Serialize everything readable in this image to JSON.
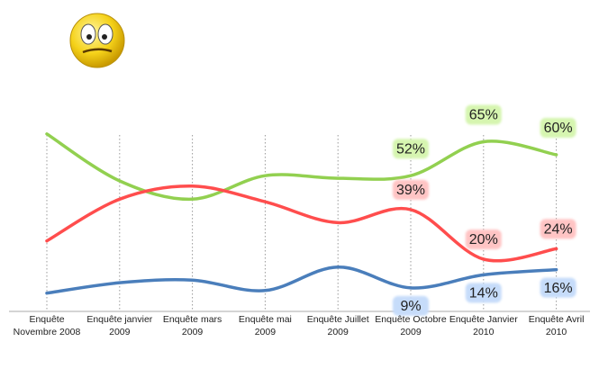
{
  "chart_data": {
    "type": "line",
    "categories": [
      "Enquête Novembre 2008",
      "Enquête janvier 2009",
      "Enquête mars 2009",
      "Enquête mai 2009",
      "Enquête Juillet 2009",
      "Enquête Octobre 2009",
      "Enquête Janvier 2010",
      "Enquête Avril 2010"
    ],
    "series": [
      {
        "name": null,
        "color": "#92d050",
        "label_bg": "#d6f5b0",
        "values": [
          68,
          50,
          43,
          52,
          51,
          52,
          65,
          60
        ],
        "value_labels": [
          null,
          null,
          null,
          null,
          null,
          "52%",
          "65%",
          "60%"
        ]
      },
      {
        "name": null,
        "color": "#ff4d4d",
        "label_bg": "#ffc4c4",
        "values": [
          27,
          43,
          48,
          42,
          34,
          39,
          20,
          24
        ],
        "value_labels": [
          null,
          null,
          null,
          null,
          null,
          "39%",
          "20%",
          "24%"
        ]
      },
      {
        "name": null,
        "color": "#4a7ebb",
        "label_bg": "#c6dcfa",
        "values": [
          7,
          11,
          12,
          8,
          17,
          9,
          14,
          16
        ],
        "value_labels": [
          null,
          null,
          null,
          null,
          null,
          "9%",
          "14%",
          "16%"
        ]
      }
    ],
    "ylim": [
      0,
      70
    ],
    "grid": true
  }
}
